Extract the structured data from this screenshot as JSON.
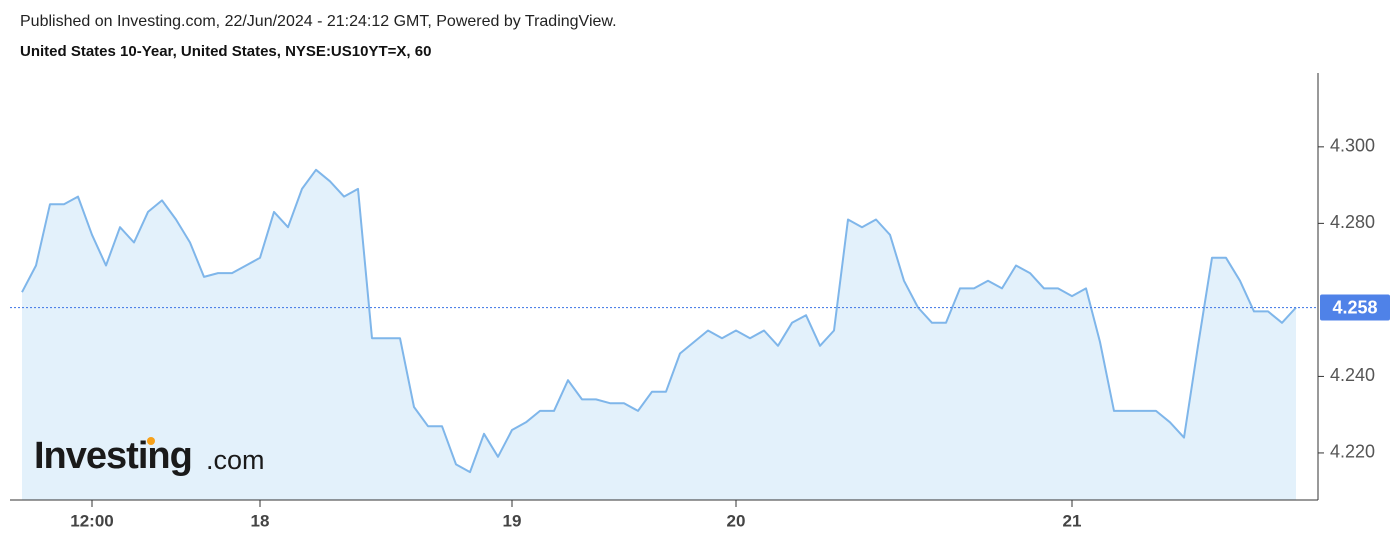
{
  "chart_data": {
    "type": "area",
    "published": "Published on Investing.com, 22/Jun/2024 - 21:24:12 GMT, Powered by TradingView.",
    "title": "United States 10-Year, United States, NYSE:US10YT=X, 60",
    "logo": {
      "main": "Investing",
      "suffix": ".com"
    },
    "line_color": "#7fb6ea",
    "fill_color": "#e3f1fb",
    "last_value_color": "#4f82e8",
    "values": [
      4.262,
      4.269,
      4.285,
      4.285,
      4.287,
      4.277,
      4.269,
      4.279,
      4.275,
      4.283,
      4.286,
      4.281,
      4.275,
      4.266,
      4.267,
      4.267,
      4.269,
      4.271,
      4.283,
      4.279,
      4.289,
      4.294,
      4.291,
      4.287,
      4.289,
      4.25,
      4.25,
      4.25,
      4.232,
      4.227,
      4.227,
      4.217,
      4.215,
      4.225,
      4.219,
      4.226,
      4.228,
      4.231,
      4.231,
      4.239,
      4.234,
      4.234,
      4.233,
      4.233,
      4.231,
      4.236,
      4.236,
      4.246,
      4.249,
      4.252,
      4.25,
      4.252,
      4.25,
      4.252,
      4.248,
      4.254,
      4.256,
      4.248,
      4.252,
      4.281,
      4.279,
      4.281,
      4.277,
      4.265,
      4.258,
      4.254,
      4.254,
      4.263,
      4.263,
      4.265,
      4.263,
      4.269,
      4.267,
      4.263,
      4.263,
      4.261,
      4.263,
      4.249,
      4.231,
      4.231,
      4.231,
      4.231,
      4.228,
      4.224,
      4.248,
      4.271,
      4.271,
      4.265,
      4.257,
      4.257,
      4.254,
      4.258
    ],
    "xlim": [
      0,
      91
    ],
    "xticks": [
      {
        "value": 5,
        "label": "12:00"
      },
      {
        "value": 17,
        "label": "18"
      },
      {
        "value": 35,
        "label": "19"
      },
      {
        "value": 51,
        "label": "20"
      },
      {
        "value": 75,
        "label": "21"
      }
    ],
    "ylim": [
      4.2077,
      4.3193
    ],
    "yticks": [
      {
        "value": 4.22,
        "label": "4.220"
      },
      {
        "value": 4.24,
        "label": "4.240"
      },
      {
        "value": 4.28,
        "label": "4.280"
      },
      {
        "value": 4.3,
        "label": "4.300"
      }
    ]
  }
}
